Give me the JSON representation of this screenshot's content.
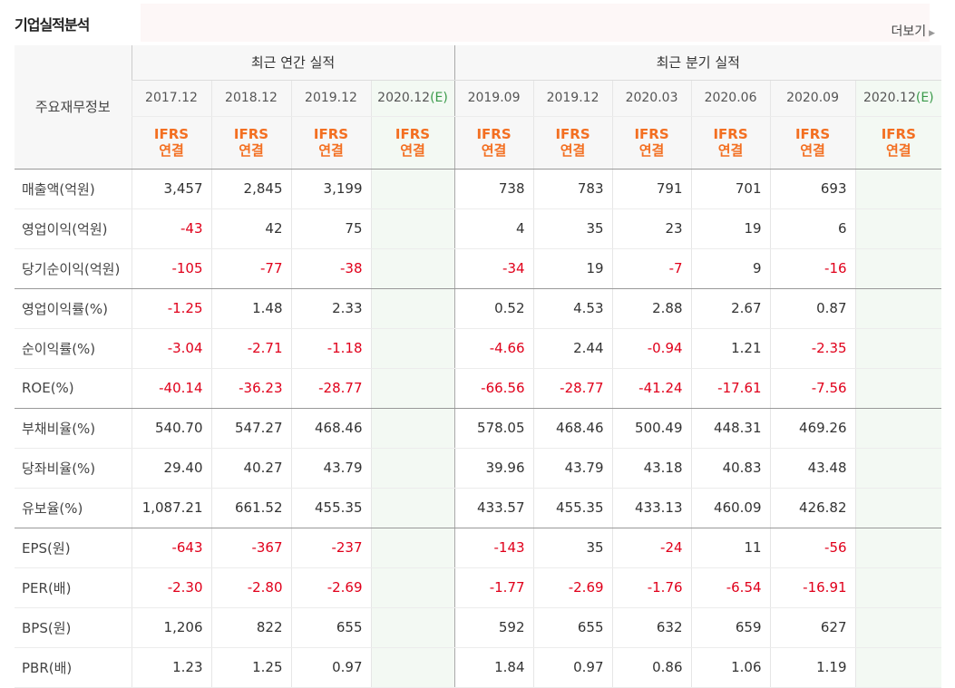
{
  "section_title": "기업실적분석",
  "more_label": "더보기",
  "table": {
    "row_header": "주요재무정보",
    "annual_header": "최근 연간 실적",
    "quarter_header": "최근 분기 실적",
    "periods": [
      "2017.12",
      "2018.12",
      "2019.12",
      "2020.12",
      "2019.09",
      "2019.12",
      "2020.03",
      "2020.06",
      "2020.09",
      "2020.12"
    ],
    "est_marker": "(E)",
    "ifrs_top": "IFRS",
    "ifrs_bottom": "연결",
    "rows": [
      {
        "label": "매출액(억원)",
        "values": [
          "3,457",
          "2,845",
          "3,199",
          "",
          "738",
          "783",
          "791",
          "701",
          "693",
          ""
        ]
      },
      {
        "label": "영업이익(억원)",
        "values": [
          "-43",
          "42",
          "75",
          "",
          "4",
          "35",
          "23",
          "19",
          "6",
          ""
        ]
      },
      {
        "label": "당기순이익(억원)",
        "values": [
          "-105",
          "-77",
          "-38",
          "",
          "-34",
          "19",
          "-7",
          "9",
          "-16",
          ""
        ]
      },
      {
        "label": "영업이익률(%)",
        "values": [
          "-1.25",
          "1.48",
          "2.33",
          "",
          "0.52",
          "4.53",
          "2.88",
          "2.67",
          "0.87",
          ""
        ]
      },
      {
        "label": "순이익률(%)",
        "values": [
          "-3.04",
          "-2.71",
          "-1.18",
          "",
          "-4.66",
          "2.44",
          "-0.94",
          "1.21",
          "-2.35",
          ""
        ]
      },
      {
        "label": "ROE(%)",
        "values": [
          "-40.14",
          "-36.23",
          "-28.77",
          "",
          "-66.56",
          "-28.77",
          "-41.24",
          "-17.61",
          "-7.56",
          ""
        ]
      },
      {
        "label": "부채비율(%)",
        "values": [
          "540.70",
          "547.27",
          "468.46",
          "",
          "578.05",
          "468.46",
          "500.49",
          "448.31",
          "469.26",
          ""
        ]
      },
      {
        "label": "당좌비율(%)",
        "values": [
          "29.40",
          "40.27",
          "43.79",
          "",
          "39.96",
          "43.79",
          "43.18",
          "40.83",
          "43.48",
          ""
        ]
      },
      {
        "label": "유보율(%)",
        "values": [
          "1,087.21",
          "661.52",
          "455.35",
          "",
          "433.57",
          "455.35",
          "433.13",
          "460.09",
          "426.82",
          ""
        ]
      },
      {
        "label": "EPS(원)",
        "values": [
          "-643",
          "-367",
          "-237",
          "",
          "-143",
          "35",
          "-24",
          "11",
          "-56",
          ""
        ]
      },
      {
        "label": "PER(배)",
        "values": [
          "-2.30",
          "-2.80",
          "-2.69",
          "",
          "-1.77",
          "-2.69",
          "-1.76",
          "-6.54",
          "-16.91",
          ""
        ]
      },
      {
        "label": "BPS(원)",
        "values": [
          "1,206",
          "822",
          "655",
          "",
          "592",
          "655",
          "632",
          "659",
          "627",
          ""
        ]
      },
      {
        "label": "PBR(배)",
        "values": [
          "1.23",
          "1.25",
          "0.97",
          "",
          "1.84",
          "0.97",
          "0.86",
          "1.06",
          "1.19",
          ""
        ]
      }
    ]
  },
  "colors": {
    "negative": "#e0001b",
    "ifrs": "#f36f21",
    "estimate": "#3a9a4a",
    "estimate_bg": "#f3f9f3"
  }
}
